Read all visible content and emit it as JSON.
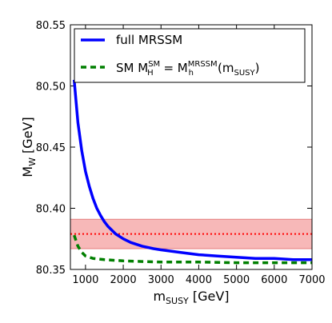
{
  "chart_data": {
    "type": "line",
    "xlabel": {
      "main": "m",
      "sub": "SUSY",
      "unit": " [GeV]"
    },
    "ylabel": {
      "main": "M",
      "sub": "W",
      "unit": " [GeV]"
    },
    "xlim": [
      600,
      7000
    ],
    "ylim": [
      80.35,
      80.55
    ],
    "x_ticks": [
      1000,
      2000,
      3000,
      4000,
      5000,
      6000,
      7000
    ],
    "y_ticks": [
      80.35,
      80.4,
      80.45,
      80.5,
      80.55
    ],
    "y_tick_labels": [
      "80.35",
      "80.40",
      "80.45",
      "80.50",
      "80.55"
    ],
    "x_tick_labels": [
      "1000",
      "2000",
      "3000",
      "4000",
      "5000",
      "6000",
      "7000"
    ],
    "legend_position": "top-left",
    "band": {
      "center": 80.379,
      "low": 80.367,
      "high": 80.391,
      "fill_color": "#f4a0a0",
      "edge_color": "#e57f7f",
      "line_color": "#ff0000"
    },
    "series": [
      {
        "legend": "full MRSSM",
        "style": "solid",
        "color": "#0000ff",
        "x": [
          700,
          800,
          900,
          1000,
          1100,
          1200,
          1300,
          1400,
          1500,
          1600,
          1800,
          2000,
          2200,
          2500,
          2800,
          3000,
          3500,
          4000,
          4500,
          5000,
          5500,
          6000,
          6500,
          7000
        ],
        "y": [
          80.505,
          80.47,
          80.447,
          80.43,
          80.418,
          80.408,
          80.4,
          80.394,
          80.389,
          80.385,
          80.379,
          80.375,
          80.372,
          80.369,
          80.367,
          80.366,
          80.364,
          80.362,
          80.361,
          80.36,
          80.359,
          80.359,
          80.358,
          80.358
        ]
      },
      {
        "legend_parts": {
          "sm": "SM ",
          "m1": "M",
          "sub1": "H",
          "sup1": "SM",
          "eq": " = M",
          "sub2": "h",
          "sup2": "MRSSM",
          "arg_open": "(m",
          "arg_sub": "SUSY",
          "arg_close": ")"
        },
        "style": "dashed",
        "color": "#007f00",
        "x": [
          700,
          800,
          900,
          1000,
          1200,
          1500,
          2000,
          2500,
          3000,
          4000,
          5000,
          6000,
          7000
        ],
        "y": [
          80.378,
          80.369,
          80.364,
          80.361,
          80.359,
          80.358,
          80.357,
          80.3565,
          80.356,
          80.356,
          80.3555,
          80.3555,
          80.3555
        ]
      }
    ]
  }
}
